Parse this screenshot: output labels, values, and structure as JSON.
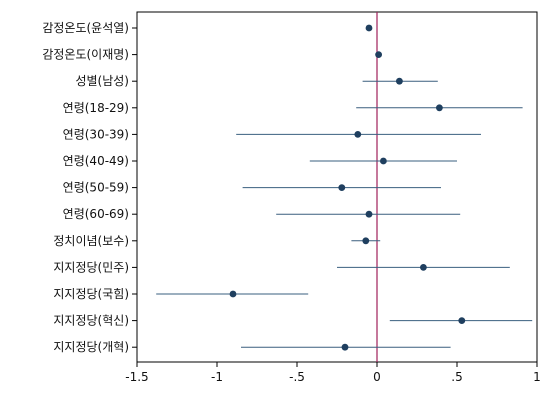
{
  "chart_data": {
    "type": "scatter",
    "subtype": "coefficient-plot",
    "orientation": "horizontal",
    "title": "",
    "xlabel": "",
    "ylabel": "",
    "xlim": [
      -1.5,
      1.0
    ],
    "xticks": [
      -1.5,
      -1,
      -0.5,
      0,
      0.5,
      1
    ],
    "xtick_labels": [
      "-1.5",
      "-1",
      "-.5",
      "0",
      ".5",
      "1"
    ],
    "grid": false,
    "reference_line": {
      "x": 0,
      "color": "#a0205a"
    },
    "marker_color": "#1f3f5f",
    "ci_color": "#3a5f7f",
    "points": [
      {
        "label": "감정온도(윤석열)",
        "estimate": -0.05,
        "lower": -0.05,
        "upper": -0.05
      },
      {
        "label": "감정온도(이재명)",
        "estimate": 0.01,
        "lower": 0.01,
        "upper": 0.01
      },
      {
        "label": "성별(남성)",
        "estimate": 0.14,
        "lower": -0.09,
        "upper": 0.38
      },
      {
        "label": "연령(18-29)",
        "estimate": 0.39,
        "lower": -0.13,
        "upper": 0.91
      },
      {
        "label": "연령(30-39)",
        "estimate": -0.12,
        "lower": -0.88,
        "upper": 0.65
      },
      {
        "label": "연령(40-49)",
        "estimate": 0.04,
        "lower": -0.42,
        "upper": 0.5
      },
      {
        "label": "연령(50-59)",
        "estimate": -0.22,
        "lower": -0.84,
        "upper": 0.4
      },
      {
        "label": "연령(60-69)",
        "estimate": -0.05,
        "lower": -0.63,
        "upper": 0.52
      },
      {
        "label": "정치이념(보수)",
        "estimate": -0.07,
        "lower": -0.16,
        "upper": 0.02
      },
      {
        "label": "지지정당(민주)",
        "estimate": 0.29,
        "lower": -0.25,
        "upper": 0.83
      },
      {
        "label": "지지정당(국힘)",
        "estimate": -0.9,
        "lower": -1.38,
        "upper": -0.43
      },
      {
        "label": "지지정당(혁신)",
        "estimate": 0.53,
        "lower": 0.08,
        "upper": 0.97
      },
      {
        "label": "지지정당(개혁)",
        "estimate": -0.2,
        "lower": -0.85,
        "upper": 0.46
      }
    ]
  }
}
